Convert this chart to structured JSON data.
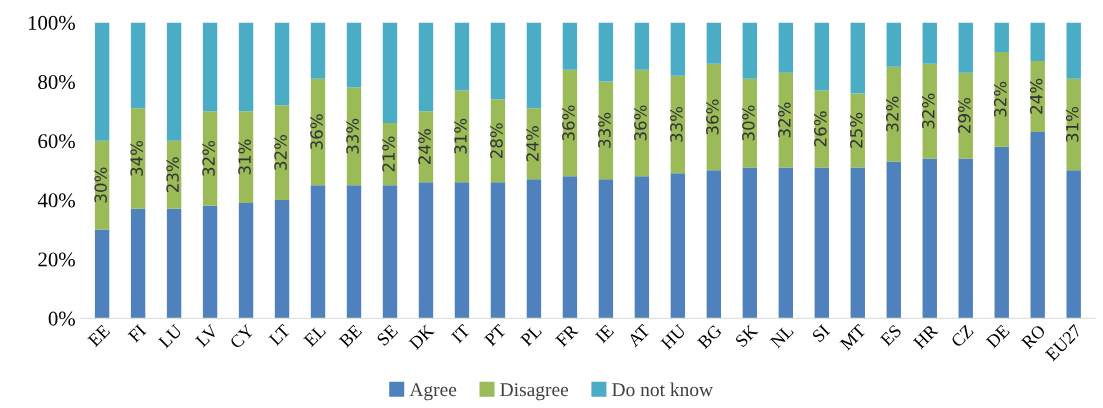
{
  "chart_data": {
    "type": "bar",
    "stacked": true,
    "categories": [
      "EE",
      "FI",
      "LU",
      "LV",
      "CY",
      "LT",
      "EL",
      "BE",
      "SE",
      "DK",
      "IT",
      "PT",
      "PL",
      "FR",
      "IE",
      "AT",
      "HU",
      "BG",
      "SK",
      "NL",
      "SI",
      "MT",
      "ES",
      "HR",
      "CZ",
      "DE",
      "RO",
      "EU27"
    ],
    "series": [
      {
        "name": "Agree",
        "color": "#4f81bd",
        "values": [
          30,
          37,
          37,
          38,
          39,
          40,
          45,
          45,
          45,
          46,
          46,
          46,
          47,
          48,
          47,
          48,
          49,
          50,
          51,
          51,
          51,
          51,
          53,
          54,
          54,
          58,
          63,
          50
        ]
      },
      {
        "name": "Disagree",
        "color": "#9bbb59",
        "values": [
          30,
          34,
          23,
          32,
          31,
          32,
          36,
          33,
          21,
          24,
          31,
          28,
          24,
          36,
          33,
          36,
          33,
          36,
          30,
          32,
          26,
          25,
          32,
          32,
          29,
          32,
          24,
          31
        ],
        "value_labels": [
          "30%",
          "34%",
          "23%",
          "32%",
          "31%",
          "32%",
          "36%",
          "33%",
          "21%",
          "24%",
          "31%",
          "28%",
          "24%",
          "36%",
          "33%",
          "36%",
          "33%",
          "36%",
          "30%",
          "32%",
          "26%",
          "25%",
          "32%",
          "32%",
          "29%",
          "32%",
          "24%",
          "31%"
        ]
      },
      {
        "name": "Do not know",
        "color": "#4bacc6",
        "values": [
          40,
          29,
          40,
          30,
          30,
          28,
          19,
          22,
          34,
          30,
          23,
          26,
          29,
          16,
          20,
          16,
          18,
          14,
          19,
          17,
          23,
          24,
          15,
          14,
          17,
          10,
          13,
          19
        ]
      }
    ],
    "ylim": [
      0,
      100
    ],
    "yticks": [
      {
        "value": 0,
        "label": "0%"
      },
      {
        "value": 20,
        "label": "20%"
      },
      {
        "value": 40,
        "label": "40%"
      },
      {
        "value": 60,
        "label": "60%"
      },
      {
        "value": 80,
        "label": "80%"
      },
      {
        "value": 100,
        "label": "100%"
      }
    ],
    "grid": false,
    "legend": "bottom"
  }
}
